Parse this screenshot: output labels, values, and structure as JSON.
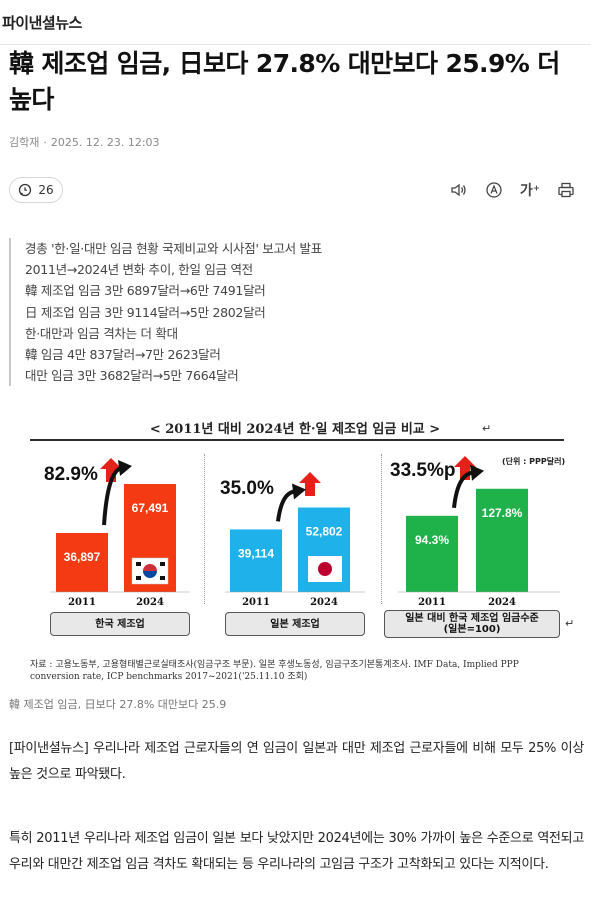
{
  "site": {
    "name": "파이낸셜뉴스"
  },
  "article": {
    "title": "韓 제조업 임금, 日보다 27.8% 대만보다 25.9% 더 높다",
    "author": "김학재",
    "date": "2025. 12. 23. 12:03",
    "comment_count": "26",
    "summary": [
      "경총 '한·일·대만 임금 현황 국제비교와 시사점' 보고서 발표",
      "2011년→2024년 변화 추이, 한일 임금 역전",
      "韓 제조업 임금 3만 6897달러→6만 7491달러",
      "日 제조업 임금 3만 9114달러→5만 2802달러",
      "한·대만과 임금 격차는 더 확대",
      "韓 임금 4만 837달러→7만 2623달러",
      "대만 임금 3만 3682달러→5만 7664달러"
    ],
    "image_caption": "韓 제조업 임금, 日보다 27.8% 대만보다 25.9",
    "paragraphs": [
      "[파이낸셜뉴스] 우리나라 제조업 근로자들의 연 임금이 일본과 대만 제조업 근로자들에 비해 모두 25% 이상 높은 것으로 파악됐다.",
      "특히 2011년 우리나라 제조업 임금이 일본 보다 낮았지만 2024년에는 30% 가까이 높은 수준으로 역전되고 우리와 대만간 제조업 임금 격차도 확대되는 등 우리나라의 고임금 구조가 고착화되고 있다는 지적이다."
    ]
  },
  "toolbar": {
    "icons": [
      "speaker-icon",
      "translate-icon",
      "font-size-icon",
      "print-icon"
    ],
    "font_size_label": "가⁺"
  },
  "chart_data": {
    "type": "bar",
    "title": "< 2011년 대비 2024년 한·일 제조업 임금 비교 >",
    "unit_note": "(단위 : PPP달러)",
    "source": "자료 : 고용노동부, 고용형태별근로실태조사(임금구조 부문). 일본 후생노동성, 임금구조기본통계조사. IMF Data, Implied PPP conversion rate, ICP benchmarks 2017~2021('25.11.10 조회)",
    "categories": [
      "2011",
      "2024"
    ],
    "panels": [
      {
        "name": "한국 제조업",
        "values": [
          36897,
          67491
        ],
        "labels": [
          "36,897",
          "67,491"
        ],
        "change": "82.9%",
        "color": "#f43a12"
      },
      {
        "name": "일본 제조업",
        "values": [
          39114,
          52802
        ],
        "labels": [
          "39,114",
          "52,802"
        ],
        "change": "35.0%",
        "color": "#1fb1ea"
      },
      {
        "name": "일본 대비 한국 제조업 임금수준",
        "sub": "(일본=100)",
        "values": [
          94.3,
          127.8
        ],
        "labels": [
          "94.3%",
          "127.8%"
        ],
        "change": "33.5%p",
        "color": "#20b24a"
      }
    ],
    "colors": {
      "arrow_up": "#e52119",
      "arrow_curve": "#111111"
    }
  }
}
